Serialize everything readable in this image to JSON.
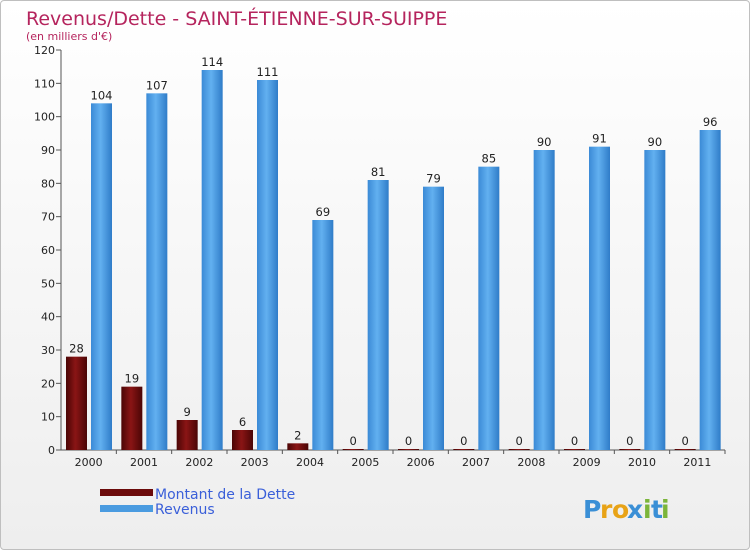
{
  "chart_data": {
    "type": "bar",
    "title": "Revenus/Dette - SAINT-ÉTIENNE-SUR-SUIPPE",
    "subtitle": "(en milliers d'€)",
    "categories": [
      "2000",
      "2001",
      "2002",
      "2003",
      "2004",
      "2005",
      "2006",
      "2007",
      "2008",
      "2009",
      "2010",
      "2011"
    ],
    "series": [
      {
        "name": "Montant de la Dette",
        "color": "#6b0a0a",
        "values": [
          28,
          19,
          9,
          6,
          2,
          0,
          0,
          0,
          0,
          0,
          0,
          0
        ]
      },
      {
        "name": "Revenus",
        "color": "#4a9be0",
        "values": [
          104,
          107,
          114,
          111,
          69,
          81,
          79,
          85,
          90,
          91,
          90,
          96
        ]
      }
    ],
    "ylim": [
      0,
      120
    ],
    "yticks": [
      0,
      10,
      20,
      30,
      40,
      50,
      60,
      70,
      80,
      90,
      100,
      110,
      120
    ],
    "xlabel": "",
    "ylabel": "",
    "grid": false,
    "legend_position": "bottom-left"
  },
  "logo": {
    "text": "Proxiti",
    "letters": [
      "P",
      "r",
      "o",
      "x",
      "i",
      "t",
      "i"
    ],
    "colors": [
      "#3a8fd6",
      "#e8a317",
      "#e8a317",
      "#3a8fd6",
      "#7bb53a",
      "#3a8fd6",
      "#7bb53a"
    ]
  }
}
